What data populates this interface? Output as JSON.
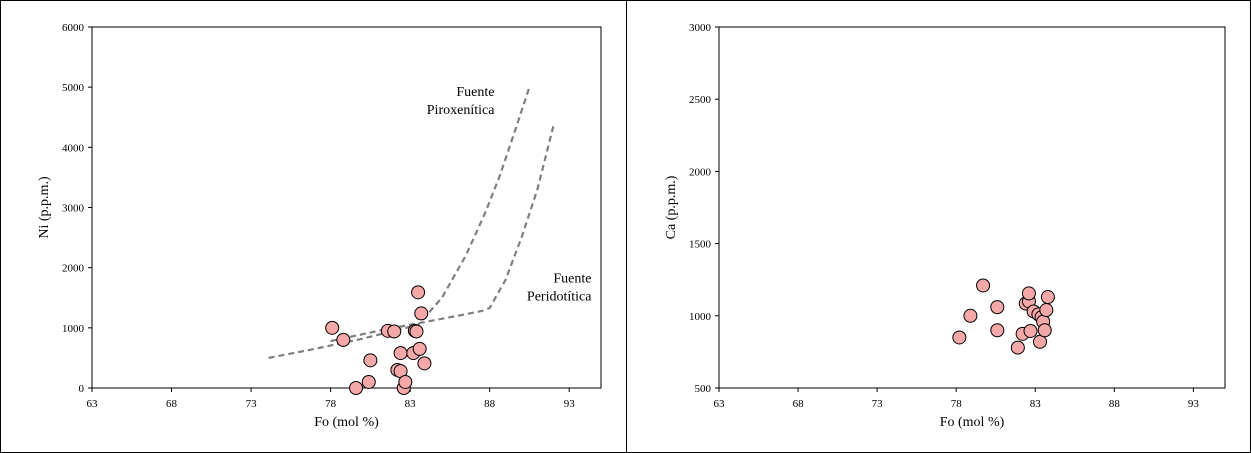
{
  "chart_data": [
    {
      "type": "scatter",
      "xlabel": "Fo (mol %)",
      "ylabel": "Ni (p.p.m.)",
      "xlim": [
        63,
        95
      ],
      "ylim": [
        0,
        6000
      ],
      "xticks": [
        63,
        68,
        73,
        78,
        83,
        88,
        93
      ],
      "yticks": [
        0,
        1000,
        2000,
        3000,
        4000,
        5000,
        6000
      ],
      "grid": false,
      "points": [
        {
          "x": 78.1,
          "y": 1000
        },
        {
          "x": 78.8,
          "y": 800
        },
        {
          "x": 79.6,
          "y": 0
        },
        {
          "x": 80.4,
          "y": 100
        },
        {
          "x": 80.5,
          "y": 460
        },
        {
          "x": 81.6,
          "y": 950
        },
        {
          "x": 82.0,
          "y": 940
        },
        {
          "x": 82.2,
          "y": 300
        },
        {
          "x": 82.4,
          "y": 280
        },
        {
          "x": 82.4,
          "y": 580
        },
        {
          "x": 82.6,
          "y": 0
        },
        {
          "x": 82.7,
          "y": 100
        },
        {
          "x": 83.2,
          "y": 580
        },
        {
          "x": 83.3,
          "y": 950
        },
        {
          "x": 83.4,
          "y": 940
        },
        {
          "x": 83.5,
          "y": 1590
        },
        {
          "x": 83.6,
          "y": 650
        },
        {
          "x": 83.7,
          "y": 1240
        },
        {
          "x": 83.9,
          "y": 410
        }
      ],
      "curves": [
        {
          "style": "dashed",
          "points": [
            [
              74.1,
              500
            ],
            [
              77,
              650
            ],
            [
              80,
              820
            ],
            [
              82,
              950
            ],
            [
              83.5,
              1050
            ],
            [
              85,
              1500
            ],
            [
              86.5,
              2200
            ],
            [
              87.7,
              2900
            ],
            [
              88.6,
              3500
            ],
            [
              89.5,
              4200
            ],
            [
              90.5,
              5000
            ]
          ]
        },
        {
          "style": "dashed",
          "points": [
            [
              78,
              780
            ],
            [
              81,
              950
            ],
            [
              84,
              1100
            ],
            [
              86,
              1200
            ],
            [
              87.5,
              1280
            ],
            [
              88,
              1330
            ],
            [
              89,
              1800
            ],
            [
              90,
              2500
            ],
            [
              91,
              3300
            ],
            [
              92,
              4350
            ]
          ]
        }
      ],
      "annotations": [
        {
          "lines": [
            "Fuente",
            "Piroxenítica"
          ],
          "x": 88.3,
          "y": 4850
        },
        {
          "lines": [
            "Fuente",
            "Peridotítica"
          ],
          "x": 94.4,
          "y": 1750
        }
      ]
    },
    {
      "type": "scatter",
      "xlabel": "Fo (mol %)",
      "ylabel": "Ca (p.p.m.)",
      "xlim": [
        63,
        95
      ],
      "ylim": [
        500,
        3000
      ],
      "xticks": [
        63,
        68,
        73,
        78,
        83,
        88,
        93
      ],
      "yticks": [
        500,
        1000,
        1500,
        2000,
        2500,
        3000
      ],
      "grid": false,
      "points": [
        {
          "x": 78.2,
          "y": 850
        },
        {
          "x": 78.9,
          "y": 1000
        },
        {
          "x": 79.7,
          "y": 1210
        },
        {
          "x": 80.6,
          "y": 900
        },
        {
          "x": 80.6,
          "y": 1060
        },
        {
          "x": 81.9,
          "y": 780
        },
        {
          "x": 82.2,
          "y": 875
        },
        {
          "x": 82.4,
          "y": 1085
        },
        {
          "x": 82.6,
          "y": 1100
        },
        {
          "x": 82.6,
          "y": 1155
        },
        {
          "x": 82.7,
          "y": 895
        },
        {
          "x": 82.9,
          "y": 1030
        },
        {
          "x": 83.2,
          "y": 1010
        },
        {
          "x": 83.3,
          "y": 820
        },
        {
          "x": 83.4,
          "y": 990
        },
        {
          "x": 83.5,
          "y": 960
        },
        {
          "x": 83.6,
          "y": 900
        },
        {
          "x": 83.7,
          "y": 1040
        },
        {
          "x": 83.8,
          "y": 1130
        }
      ],
      "curves": [],
      "annotations": []
    }
  ],
  "style": {
    "marker_fill": "#f4a8a8",
    "marker_stroke": "#000000",
    "curve_color": "#7f7f7f"
  }
}
